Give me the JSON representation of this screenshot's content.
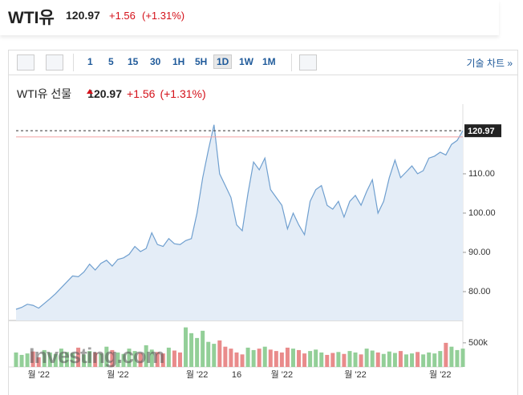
{
  "header": {
    "symbol": "WTI유",
    "price": "120.97",
    "change": "+1.56",
    "change_percent": "(+1.31%)"
  },
  "toolbar": {
    "intervals": [
      "1",
      "5",
      "15",
      "30",
      "1H",
      "5H",
      "1D",
      "1W",
      "1M"
    ],
    "selected": "1D",
    "technical": "기술 차트 »"
  },
  "chart_data": {
    "type": "line",
    "title": "WTI유 선물",
    "price": "120.97",
    "change": "+1.56",
    "change_percent": "(+1.31%)",
    "watermark": "Investing.com",
    "categories": [
      null,
      null,
      null,
      null,
      "월 '22",
      null,
      null,
      null,
      null,
      null,
      null,
      null,
      null,
      null,
      null,
      null,
      null,
      null,
      "월 '22",
      null,
      null,
      null,
      null,
      null,
      null,
      null,
      null,
      null,
      null,
      null,
      null,
      null,
      "월 '22",
      null,
      null,
      null,
      null,
      null,
      null,
      "16",
      null,
      null,
      null,
      null,
      null,
      null,
      null,
      "월 '22",
      null,
      null,
      null,
      null,
      null,
      null,
      null,
      null,
      null,
      null,
      null,
      null,
      "월 '22",
      null,
      null,
      null,
      null,
      null,
      null,
      null,
      null,
      null,
      null,
      null,
      null,
      null,
      null,
      "월 '22",
      null,
      null,
      null,
      null
    ],
    "series": [
      {
        "color": "#6f9fcf",
        "values": [
          75.5,
          76,
          76.8,
          76.5,
          75.8,
          77,
          78.2,
          79.5,
          81,
          82.5,
          84,
          83.8,
          85,
          87,
          85.5,
          87.2,
          88,
          86.5,
          88.2,
          88.6,
          89.5,
          91.5,
          90.2,
          91,
          95,
          92,
          91.5,
          93.5,
          92.2,
          92,
          93,
          93.5,
          100,
          109,
          116,
          122.5,
          110,
          107,
          104,
          97,
          95.5,
          105,
          113,
          111,
          114,
          106,
          104,
          102,
          96,
          100,
          97,
          94.5,
          103,
          106,
          107,
          102,
          101,
          103,
          99,
          103,
          104.5,
          102,
          105.5,
          108.5,
          100,
          103,
          109,
          113.5,
          109,
          110.5,
          112,
          110,
          110.8,
          114,
          114.5,
          115.5,
          114.8,
          117.5,
          118.5,
          120.97
        ]
      },
      {
        "axis": "y2",
        "values": [
          300000,
          250000,
          280000,
          320000,
          200000,
          350000,
          300000,
          270000,
          380000,
          310000,
          290000,
          400000,
          260000,
          330000,
          300000,
          280000,
          420000,
          350000,
          300000,
          270000,
          380000,
          330000,
          290000,
          450000,
          360000,
          310000,
          280000,
          400000,
          340000,
          300000,
          820000,
          700000,
          600000,
          750000,
          520000,
          480000,
          550000,
          420000,
          380000,
          300000,
          260000,
          400000,
          350000,
          380000,
          420000,
          360000,
          330000,
          300000,
          400000,
          380000,
          350000,
          280000,
          330000,
          360000,
          300000,
          250000,
          290000,
          310000,
          270000,
          330000,
          300000,
          260000,
          380000,
          340000,
          300000,
          270000,
          320000,
          290000,
          330000,
          260000,
          280000,
          310000,
          260000,
          300000,
          280000,
          330000,
          500000,
          420000,
          350000,
          380000
        ]
      }
    ],
    "up_color": "#93cf98",
    "down_color": "#e98b8b",
    "area_color": "#e4edf7",
    "previous_close": 119.41,
    "previous_close_color": "#f0a0a0",
    "ylim": [
      72.65,
      125.7
    ],
    "yticks": [
      {
        "value": 80,
        "label": "80.00"
      },
      {
        "value": 90,
        "label": "90.00"
      },
      {
        "value": 100,
        "label": "100.00"
      },
      {
        "value": 110,
        "label": "110.00"
      }
    ],
    "y2lim": [
      0,
      880000
    ],
    "y2ticks": [
      {
        "value": 500000,
        "label": "500k"
      }
    ]
  }
}
